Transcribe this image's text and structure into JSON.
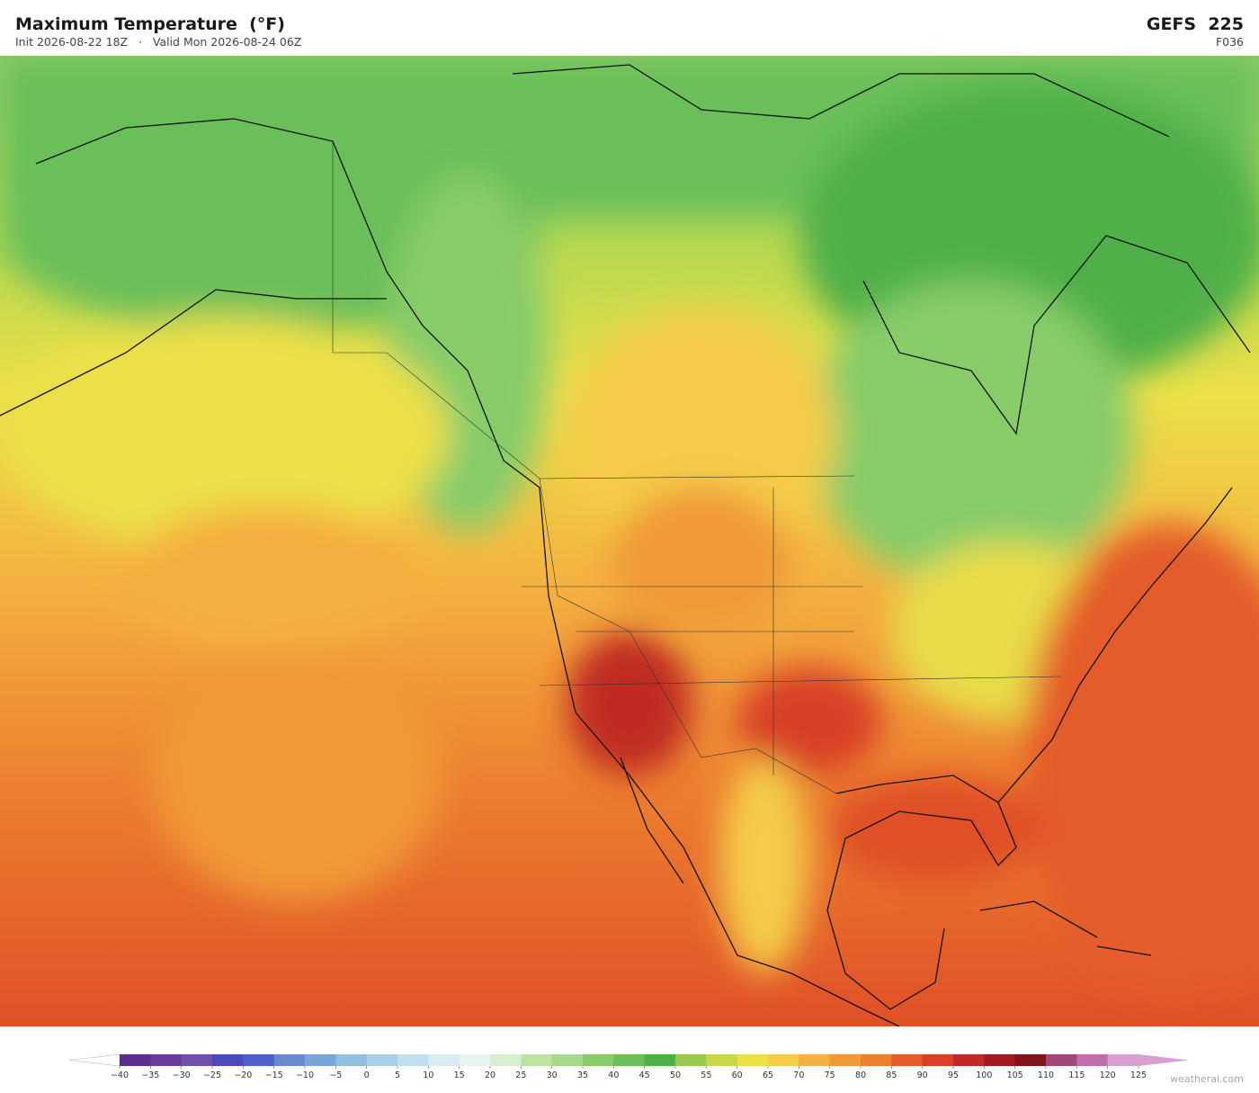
{
  "header": {
    "title": "Maximum Temperature  (°F)",
    "subtitle": "Init 2026-08-22 18Z   ·   Valid Mon 2026-08-24 06Z",
    "model": "GEFS  225",
    "forecast_hour": "F036"
  },
  "colorbar": {
    "ticks": [
      {
        "value": -40,
        "label": "−40"
      },
      {
        "value": -35,
        "label": "−35"
      },
      {
        "value": -30,
        "label": "−30"
      },
      {
        "value": -25,
        "label": "−25"
      },
      {
        "value": -20,
        "label": "−20"
      },
      {
        "value": -15,
        "label": "−15"
      },
      {
        "value": -10,
        "label": "−10"
      },
      {
        "value": -5,
        "label": "−5"
      },
      0,
      5,
      10,
      15,
      20,
      25,
      30,
      35,
      40,
      45,
      50,
      55,
      60,
      65,
      70,
      75,
      80,
      85,
      90,
      95,
      100,
      105,
      110,
      115,
      120,
      125
    ],
    "colors": [
      "#5b2d8e",
      "#6a3d9a",
      "#7050a8",
      "#4a4ab8",
      "#5060c8",
      "#6a8ad0",
      "#7aa5d8",
      "#92bfe0",
      "#a8d0ea",
      "#c0e0f0",
      "#d8ecf4",
      "#e8f4ee",
      "#d8eed0",
      "#c0e2a0",
      "#a8d88a",
      "#88cc6a",
      "#6abf5a",
      "#50b048",
      "#98c850",
      "#c8d848",
      "#ece048",
      "#f4cc48",
      "#f4b040",
      "#f09a38",
      "#ec8030",
      "#e45c2c",
      "#d84028",
      "#c02a24",
      "#a01c20",
      "#801418",
      "#a04878",
      "#c070a8",
      "#d8a0d0"
    ],
    "under_color": "#ffffff",
    "over_color": "#d8a0d0"
  },
  "footer": {
    "credit": "weatherai.com"
  }
}
